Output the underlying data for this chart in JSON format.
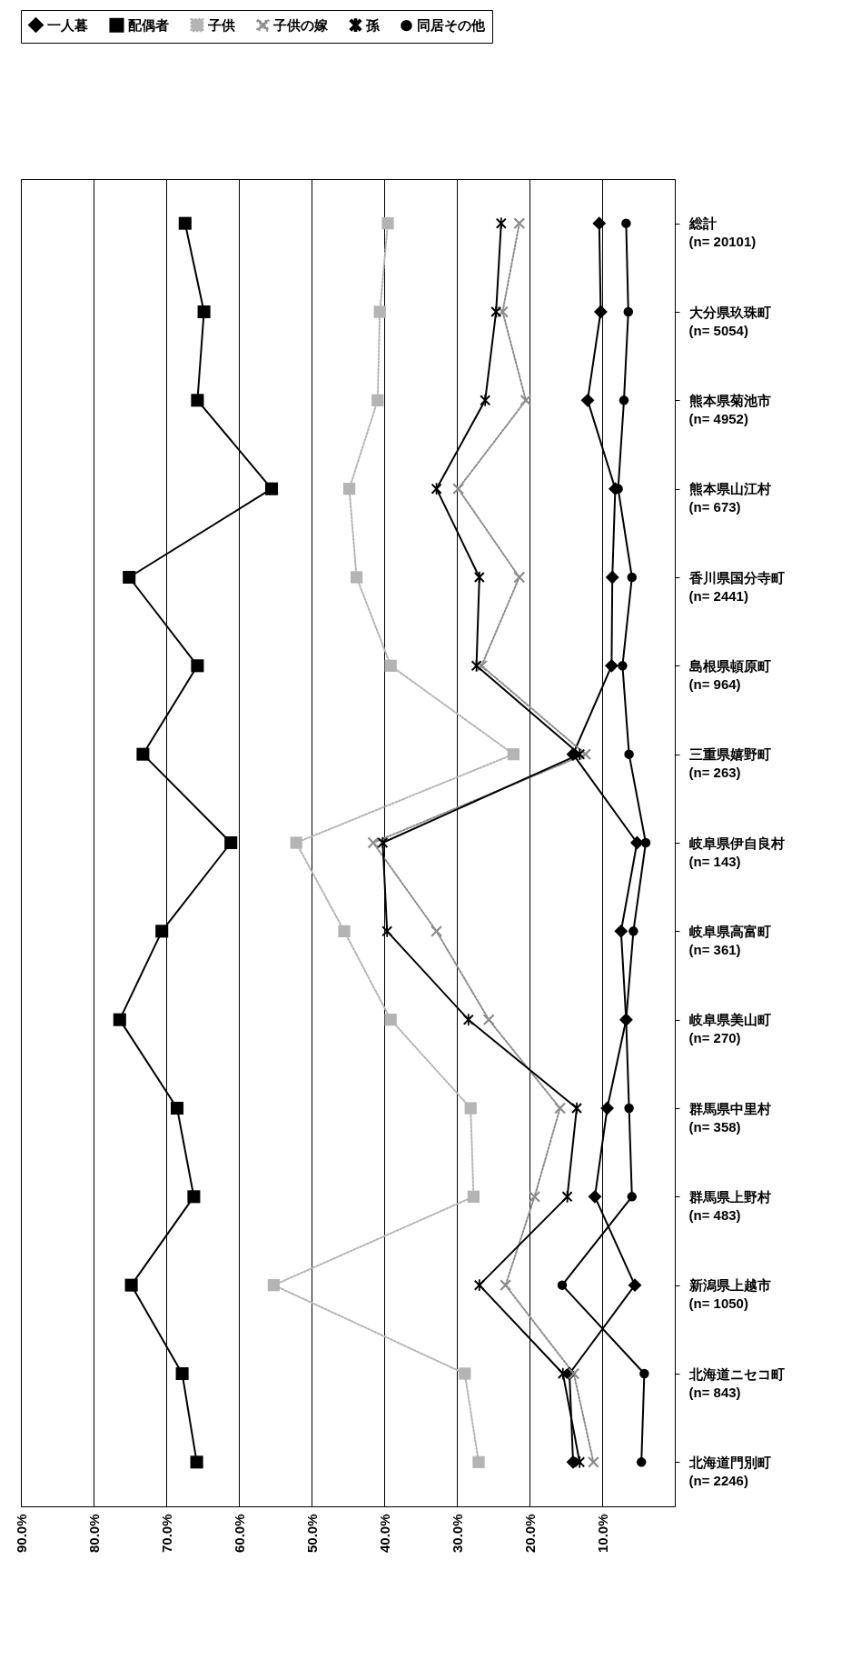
{
  "chart_data": {
    "type": "line",
    "orientation": "horizontal",
    "categories": [
      "総計\n(n= 20101)",
      "大分県玖珠町\n(n= 5054)",
      "熊本県菊池市\n(n= 4952)",
      "熊本県山江村\n(n= 673)",
      "香川県国分寺町\n(n= 2441)",
      "島根県頓原町\n(n= 964)",
      "三重県嬉野町\n(n= 263)",
      "岐阜県伊自良村\n(n= 143)",
      "岐阜県高富町\n(n= 361)",
      "岐阜県美山町\n(n= 270)",
      "群馬県中里村\n(n= 358)",
      "群馬県上野村\n(n= 483)",
      "新潟県上越市\n(n= 1050)",
      "北海道ニセコ町\n(n= 843)",
      "北海道門別町\n(n= 2246)"
    ],
    "series": [
      {
        "name": "一人暮",
        "color": "#000000",
        "marker": "diamond",
        "line_style": "solid",
        "values": [
          10.4,
          10.2,
          12.0,
          8.2,
          8.6,
          8.7,
          14.0,
          5.2,
          7.4,
          6.7,
          9.3,
          11.0,
          5.5,
          14.5,
          14.0
        ]
      },
      {
        "name": "配偶者",
        "color": "#000000",
        "marker": "square",
        "line_style": "solid",
        "values": [
          67.4,
          64.8,
          65.7,
          55.5,
          75.1,
          65.7,
          73.2,
          61.1,
          70.6,
          76.4,
          68.5,
          66.2,
          74.8,
          67.8,
          65.8
        ]
      },
      {
        "name": "子供",
        "color": "#b4b4b4",
        "marker": "square",
        "line_style": "dotted",
        "values": [
          39.5,
          40.6,
          40.9,
          44.8,
          43.8,
          39.1,
          22.2,
          52.1,
          45.5,
          39.1,
          28.1,
          27.7,
          55.2,
          28.9,
          27.0
        ]
      },
      {
        "name": "子供の嫁",
        "color": "#8c8c8c",
        "marker": "cross",
        "line_style": "dotted",
        "values": [
          21.4,
          23.7,
          20.5,
          29.8,
          21.4,
          26.6,
          12.3,
          41.5,
          32.8,
          25.6,
          15.8,
          19.3,
          23.3,
          13.9,
          11.2
        ]
      },
      {
        "name": "孫",
        "color": "#000000",
        "marker": "star",
        "line_style": "solid",
        "values": [
          23.9,
          24.6,
          26.1,
          32.8,
          26.9,
          27.3,
          13.1,
          40.2,
          39.6,
          28.4,
          13.5,
          14.8,
          26.9,
          15.4,
          13.1
        ]
      },
      {
        "name": "同居その他",
        "color": "#000000",
        "marker": "circle",
        "line_style": "solid",
        "values": [
          6.7,
          6.4,
          7.0,
          7.8,
          5.9,
          7.2,
          6.3,
          4.0,
          5.7,
          6.7,
          6.3,
          5.9,
          15.5,
          4.2,
          4.6
        ]
      }
    ],
    "xlim": [
      90,
      0
    ],
    "xticks": [
      {
        "value": 90,
        "label": "90.0%"
      },
      {
        "value": 80,
        "label": "80.0%"
      },
      {
        "value": 70,
        "label": "70.0%"
      },
      {
        "value": 60,
        "label": "60.0%"
      },
      {
        "value": 50,
        "label": "50.0%"
      },
      {
        "value": 40,
        "label": "40.0%"
      },
      {
        "value": 30,
        "label": "30.0%"
      },
      {
        "value": 20,
        "label": "20.0%"
      },
      {
        "value": 10,
        "label": "10.0%"
      }
    ],
    "grid": "x",
    "legend": "top"
  }
}
